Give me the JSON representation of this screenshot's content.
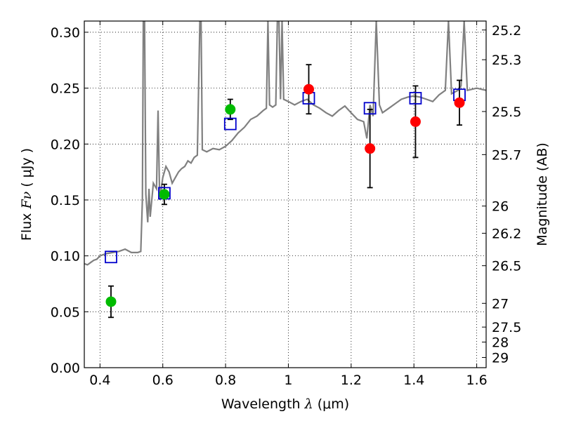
{
  "chart_data": {
    "type": "scatter",
    "title": "",
    "xlabel_prefix": "Wavelength ",
    "xlabel_symbol": "λ",
    "xlabel_unit": " (μm)",
    "ylabel_prefix": "Flux ",
    "ylabel_symbol": "Fν",
    "ylabel_unit": " ( μJy )",
    "y2label": "Magnitude (AB)",
    "xlim": [
      0.35,
      1.63
    ],
    "ylim": [
      0.0,
      0.31
    ],
    "grid": true,
    "x_ticks": [
      0.4,
      0.6,
      0.8,
      1.0,
      1.2,
      1.4,
      1.6
    ],
    "x_tick_labels": [
      "0.4",
      "0.6",
      "0.8",
      "1",
      "1.2",
      "1.4",
      "1.6"
    ],
    "y_ticks": [
      0.0,
      0.05,
      0.1,
      0.15,
      0.2,
      0.25,
      0.3
    ],
    "y_tick_labels": [
      "0.00",
      "0.05",
      "0.10",
      "0.15",
      "0.20",
      "0.25",
      "0.30"
    ],
    "mag_ticks": [
      {
        "mag": 25.2,
        "label": "25.2"
      },
      {
        "mag": 25.3,
        "label": "25.3"
      },
      {
        "mag": 25.5,
        "label": "25.5"
      },
      {
        "mag": 25.7,
        "label": "25.7"
      },
      {
        "mag": 26.0,
        "label": "26"
      },
      {
        "mag": 26.2,
        "label": "26.2"
      },
      {
        "mag": 26.5,
        "label": "26.5"
      },
      {
        "mag": 27.0,
        "label": "27"
      },
      {
        "mag": 27.5,
        "label": "27.5"
      },
      {
        "mag": 28.0,
        "label": "28"
      },
      {
        "mag": 29.0,
        "label": "29"
      }
    ],
    "series": [
      {
        "kind": "model-spectrum",
        "color": "#808080",
        "points": [
          [
            0.35,
            0.093
          ],
          [
            0.36,
            0.092
          ],
          [
            0.37,
            0.094
          ],
          [
            0.38,
            0.096
          ],
          [
            0.39,
            0.097
          ],
          [
            0.4,
            0.1
          ],
          [
            0.42,
            0.102
          ],
          [
            0.44,
            0.103
          ],
          [
            0.46,
            0.104
          ],
          [
            0.48,
            0.106
          ],
          [
            0.5,
            0.103
          ],
          [
            0.52,
            0.103
          ],
          [
            0.53,
            0.104
          ],
          [
            0.535,
            0.15
          ],
          [
            0.538,
            0.31
          ],
          [
            0.542,
            0.31
          ],
          [
            0.546,
            0.155
          ],
          [
            0.552,
            0.13
          ],
          [
            0.556,
            0.16
          ],
          [
            0.56,
            0.135
          ],
          [
            0.57,
            0.165
          ],
          [
            0.58,
            0.16
          ],
          [
            0.585,
            0.23
          ],
          [
            0.59,
            0.15
          ],
          [
            0.6,
            0.17
          ],
          [
            0.61,
            0.18
          ],
          [
            0.62,
            0.175
          ],
          [
            0.63,
            0.165
          ],
          [
            0.64,
            0.17
          ],
          [
            0.65,
            0.175
          ],
          [
            0.66,
            0.178
          ],
          [
            0.67,
            0.18
          ],
          [
            0.68,
            0.185
          ],
          [
            0.69,
            0.183
          ],
          [
            0.7,
            0.188
          ],
          [
            0.71,
            0.19
          ],
          [
            0.718,
            0.31
          ],
          [
            0.722,
            0.31
          ],
          [
            0.726,
            0.195
          ],
          [
            0.74,
            0.193
          ],
          [
            0.76,
            0.196
          ],
          [
            0.78,
            0.195
          ],
          [
            0.8,
            0.198
          ],
          [
            0.82,
            0.203
          ],
          [
            0.84,
            0.21
          ],
          [
            0.86,
            0.215
          ],
          [
            0.88,
            0.222
          ],
          [
            0.9,
            0.225
          ],
          [
            0.92,
            0.23
          ],
          [
            0.93,
            0.232
          ],
          [
            0.935,
            0.31
          ],
          [
            0.94,
            0.235
          ],
          [
            0.95,
            0.233
          ],
          [
            0.96,
            0.235
          ],
          [
            0.965,
            0.31
          ],
          [
            0.97,
            0.31
          ],
          [
            0.975,
            0.24
          ],
          [
            0.98,
            0.31
          ],
          [
            0.985,
            0.24
          ],
          [
            1.0,
            0.238
          ],
          [
            1.02,
            0.235
          ],
          [
            1.04,
            0.238
          ],
          [
            1.06,
            0.24
          ],
          [
            1.08,
            0.235
          ],
          [
            1.1,
            0.232
          ],
          [
            1.12,
            0.228
          ],
          [
            1.14,
            0.225
          ],
          [
            1.16,
            0.23
          ],
          [
            1.18,
            0.234
          ],
          [
            1.2,
            0.228
          ],
          [
            1.22,
            0.222
          ],
          [
            1.24,
            0.22
          ],
          [
            1.25,
            0.205
          ],
          [
            1.26,
            0.235
          ],
          [
            1.27,
            0.225
          ],
          [
            1.28,
            0.31
          ],
          [
            1.29,
            0.235
          ],
          [
            1.3,
            0.228
          ],
          [
            1.32,
            0.232
          ],
          [
            1.34,
            0.236
          ],
          [
            1.36,
            0.24
          ],
          [
            1.38,
            0.242
          ],
          [
            1.4,
            0.243
          ],
          [
            1.42,
            0.242
          ],
          [
            1.44,
            0.24
          ],
          [
            1.46,
            0.238
          ],
          [
            1.48,
            0.244
          ],
          [
            1.5,
            0.248
          ],
          [
            1.51,
            0.31
          ],
          [
            1.52,
            0.245
          ],
          [
            1.54,
            0.248
          ],
          [
            1.55,
            0.252
          ],
          [
            1.56,
            0.31
          ],
          [
            1.57,
            0.248
          ],
          [
            1.6,
            0.25
          ],
          [
            1.63,
            0.248
          ]
        ]
      },
      {
        "kind": "model-squares",
        "color": "#0000cc",
        "points": [
          [
            0.435,
            0.099
          ],
          [
            0.605,
            0.156
          ],
          [
            0.815,
            0.218
          ],
          [
            1.065,
            0.241
          ],
          [
            1.26,
            0.232
          ],
          [
            1.405,
            0.241
          ],
          [
            1.545,
            0.244
          ]
        ]
      },
      {
        "kind": "observed-green",
        "color": "#00bb00",
        "points": [
          {
            "x": 0.435,
            "y": 0.059,
            "err": 0.014
          },
          {
            "x": 0.605,
            "y": 0.155,
            "err": 0.009
          },
          {
            "x": 0.815,
            "y": 0.231,
            "err": 0.009
          }
        ]
      },
      {
        "kind": "observed-red",
        "color": "#ff0000",
        "points": [
          {
            "x": 1.065,
            "y": 0.249,
            "err": 0.022
          },
          {
            "x": 1.26,
            "y": 0.196,
            "err": 0.035
          },
          {
            "x": 1.405,
            "y": 0.22,
            "err": 0.032
          },
          {
            "x": 1.545,
            "y": 0.237,
            "err": 0.02
          }
        ]
      }
    ]
  }
}
